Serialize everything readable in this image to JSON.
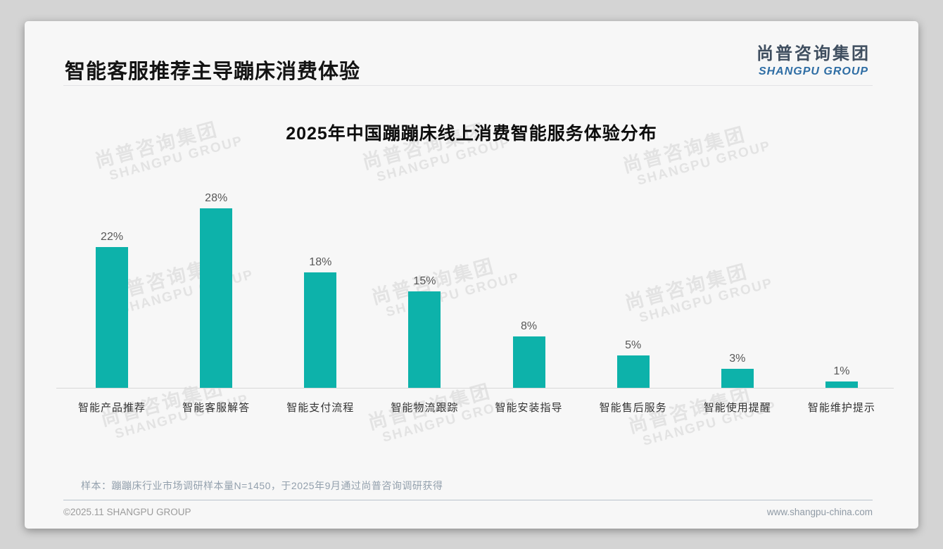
{
  "page": {
    "title": "智能客服推荐主导蹦床消费体验",
    "logo": {
      "cn": "尚普咨询集团",
      "en": "SHANGPU GROUP"
    },
    "watermark": {
      "cn": "尚普咨询集团",
      "en": "SHANGPU GROUP"
    },
    "footnote": "样本：蹦蹦床行业市场调研样本量N=1450，于2025年9月通过尚普咨询调研获得",
    "footer": {
      "left": "©2025.11 SHANGPU GROUP",
      "right": "www.shangpu-china.com"
    },
    "colors": {
      "page_bg": "#d4d4d4",
      "card_bg": "#f7f7f7",
      "bar": "#0db2aa",
      "logo_cn": "#3f4e5f",
      "logo_en": "#2e6da4"
    }
  },
  "chart_data": {
    "type": "bar",
    "title": "2025年中国蹦蹦床线上消费智能服务体验分布",
    "categories": [
      "智能产品推荐",
      "智能客服解答",
      "智能支付流程",
      "智能物流跟踪",
      "智能安装指导",
      "智能售后服务",
      "智能使用提醒",
      "智能维护提示"
    ],
    "values": [
      22,
      28,
      18,
      15,
      8,
      5,
      3,
      1
    ],
    "data_labels": [
      "22%",
      "28%",
      "18%",
      "15%",
      "8%",
      "5%",
      "3%",
      "1%"
    ],
    "unit": "%",
    "xlabel": "",
    "ylabel": "",
    "ylim": [
      0,
      30
    ],
    "grid": false,
    "legend": "none",
    "bar_color": "#0db2aa",
    "y_axis_visible": false,
    "baseline_visible": true
  }
}
